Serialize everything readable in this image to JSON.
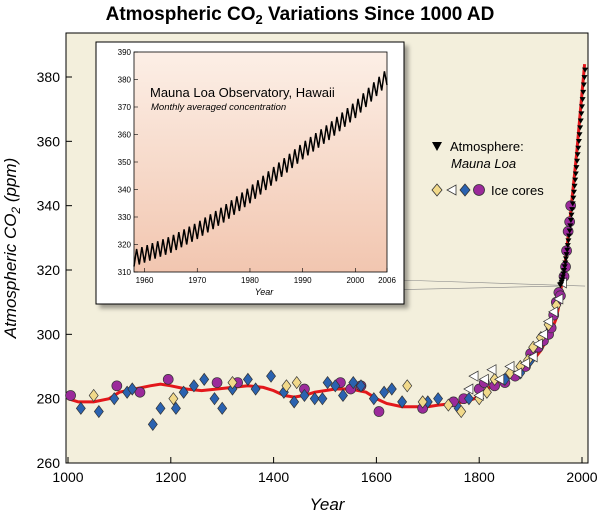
{
  "chart_data": [
    {
      "type": "scatter",
      "title_main": "Atmospheric CO",
      "title_sub": "2",
      "title_rest": " Variations Since 1000 AD",
      "xlabel": "Year",
      "ylabel_main": "Atmospheric CO",
      "ylabel_sub": "2",
      "ylabel_rest": " (ppm)",
      "xlim": [
        1000,
        2010
      ],
      "ylim": [
        260,
        392
      ],
      "x_ticks": [
        1000,
        1200,
        1400,
        1600,
        1800,
        2000
      ],
      "y_ticks": [
        260,
        280,
        300,
        320,
        340,
        360,
        380
      ],
      "grid": false,
      "legend_position": "right",
      "legend": {
        "mauna_loa_line1": "Atmosphere:",
        "mauna_loa_line2": "Mauna Loa",
        "ice_cores": "Ice cores"
      },
      "series": [
        {
          "name": "Ice cores",
          "marker": "circle",
          "color": "#9b2a9b",
          "points": [
            [
              1005,
              281
            ],
            [
              1095,
              284
            ],
            [
              1140,
              282
            ],
            [
              1195,
              286
            ],
            [
              1290,
              285
            ],
            [
              1330,
              285
            ],
            [
              1460,
              283
            ],
            [
              1530,
              285
            ],
            [
              1550,
              283
            ],
            [
              1570,
              284
            ],
            [
              1605,
              276
            ],
            [
              1690,
              277
            ],
            [
              1750,
              279
            ],
            [
              1770,
              280
            ],
            [
              1800,
              283
            ],
            [
              1810,
              285
            ],
            [
              1830,
              284
            ],
            [
              1850,
              285
            ],
            [
              1870,
              287
            ],
            [
              1890,
              290
            ],
            [
              1900,
              294
            ],
            [
              1915,
              296
            ],
            [
              1925,
              298
            ],
            [
              1935,
              300
            ],
            [
              1940,
              302
            ],
            [
              1945,
              306
            ],
            [
              1950,
              310
            ],
            [
              1955,
              313
            ],
            [
              1958,
              312
            ],
            [
              1965,
              318
            ],
            [
              1968,
              321
            ],
            [
              1970,
              326
            ],
            [
              1973,
              332
            ],
            [
              1976,
              335
            ],
            [
              1978,
              340
            ]
          ]
        },
        {
          "name": "Ice cores",
          "marker": "diamond",
          "color": "#2a62b0",
          "points": [
            [
              1025,
              277
            ],
            [
              1060,
              276
            ],
            [
              1090,
              280
            ],
            [
              1115,
              282
            ],
            [
              1125,
              283
            ],
            [
              1165,
              272
            ],
            [
              1180,
              277
            ],
            [
              1210,
              277
            ],
            [
              1225,
              282
            ],
            [
              1245,
              284
            ],
            [
              1265,
              286
            ],
            [
              1285,
              280
            ],
            [
              1300,
              277
            ],
            [
              1320,
              283
            ],
            [
              1350,
              286
            ],
            [
              1365,
              283
            ],
            [
              1395,
              287
            ],
            [
              1420,
              282
            ],
            [
              1440,
              279
            ],
            [
              1460,
              281
            ],
            [
              1480,
              280
            ],
            [
              1495,
              280
            ],
            [
              1505,
              285
            ],
            [
              1520,
              284
            ],
            [
              1535,
              281
            ],
            [
              1555,
              285
            ],
            [
              1570,
              284
            ],
            [
              1595,
              280
            ],
            [
              1615,
              282
            ],
            [
              1630,
              283
            ],
            [
              1650,
              279
            ],
            [
              1700,
              279
            ],
            [
              1720,
              280
            ],
            [
              1760,
              277
            ],
            [
              1780,
              280
            ],
            [
              1850,
              286
            ],
            [
              1880,
              288
            ],
            [
              1900,
              292
            ]
          ]
        },
        {
          "name": "Ice cores",
          "marker": "diamond",
          "color": "#f1d98a",
          "points": [
            [
              1050,
              281
            ],
            [
              1205,
              280
            ],
            [
              1320,
              285
            ],
            [
              1425,
              284
            ],
            [
              1445,
              285
            ],
            [
              1660,
              284
            ],
            [
              1690,
              279
            ],
            [
              1740,
              278
            ],
            [
              1765,
              276
            ],
            [
              1800,
              280
            ],
            [
              1815,
              282
            ],
            [
              1830,
              286
            ],
            [
              1860,
              288
            ],
            [
              1880,
              290
            ],
            [
              1895,
              292
            ],
            [
              1905,
              296
            ],
            [
              1920,
              299
            ],
            [
              1935,
              303
            ],
            [
              1950,
              309
            ]
          ]
        },
        {
          "name": "Ice cores",
          "marker": "triangle-left",
          "color": "#ffffff",
          "points": [
            [
              1780,
              283
            ],
            [
              1790,
              287
            ],
            [
              1800,
              281
            ],
            [
              1810,
              286
            ],
            [
              1825,
              289
            ],
            [
              1840,
              286
            ],
            [
              1860,
              290
            ],
            [
              1875,
              288
            ],
            [
              1890,
              291
            ],
            [
              1905,
              293
            ],
            [
              1915,
              297
            ],
            [
              1925,
              300
            ],
            [
              1935,
              304
            ],
            [
              1945,
              307
            ],
            [
              1955,
              311
            ],
            [
              1962,
              316
            ]
          ]
        },
        {
          "name": "Atmosphere: Mauna Loa",
          "marker": "triangle-down",
          "color": "#000000",
          "x": [
            1958,
            2006
          ],
          "y": [
            315,
            382
          ]
        }
      ],
      "fit_line": {
        "color": "#e3171b",
        "x": [
          1000,
          1020,
          1050,
          1080,
          1100,
          1130,
          1160,
          1180,
          1200,
          1230,
          1260,
          1290,
          1320,
          1350,
          1380,
          1400,
          1420,
          1440,
          1460,
          1480,
          1500,
          1520,
          1550,
          1580,
          1600,
          1620,
          1650,
          1680,
          1700,
          1720,
          1750,
          1770,
          1790,
          1800,
          1820,
          1840,
          1860,
          1880,
          1900,
          1910,
          1920,
          1930,
          1940,
          1950,
          1955,
          1960,
          1965,
          1970,
          1975,
          1980,
          1985,
          1990,
          1995,
          2000,
          2005
        ],
        "y": [
          280,
          279,
          279,
          280,
          282,
          283,
          284,
          284.5,
          284,
          283,
          282.5,
          283,
          283.5,
          284,
          283.5,
          282.5,
          281,
          280.5,
          281,
          282,
          282.5,
          283,
          283,
          282,
          280,
          278.5,
          277.5,
          277.5,
          277.5,
          278,
          278.5,
          279,
          280,
          281,
          283.5,
          285.5,
          287,
          288.5,
          291,
          293,
          295,
          298,
          301,
          305,
          309,
          315,
          319,
          326,
          333,
          341,
          349,
          357,
          366,
          375,
          384
        ]
      }
    },
    {
      "type": "line",
      "title": "Mauna Loa Observatory, Hawaii",
      "subtitle": "Monthly averaged concentration",
      "xlabel": "Year",
      "xlim": [
        1958,
        2006
      ],
      "ylim": [
        310,
        390
      ],
      "x_ticks": [
        1960,
        1970,
        1980,
        1990,
        2000,
        2006
      ],
      "y_ticks": [
        310,
        320,
        330,
        340,
        350,
        360,
        370,
        380,
        390
      ],
      "background_top": "#fcefe6",
      "background_bottom": "#f2c6b0",
      "series": [
        {
          "name": "",
          "color": "#000000",
          "seasonal_amplitude": 3,
          "trend": {
            "x": [
              1958,
              1965,
              1970,
              1975,
              1980,
              1985,
              1990,
              1995,
              2000,
              2006
            ],
            "y": [
              315,
              320,
              325,
              331,
              338,
              346,
              354,
              361,
              369,
              381
            ]
          }
        }
      ]
    }
  ]
}
